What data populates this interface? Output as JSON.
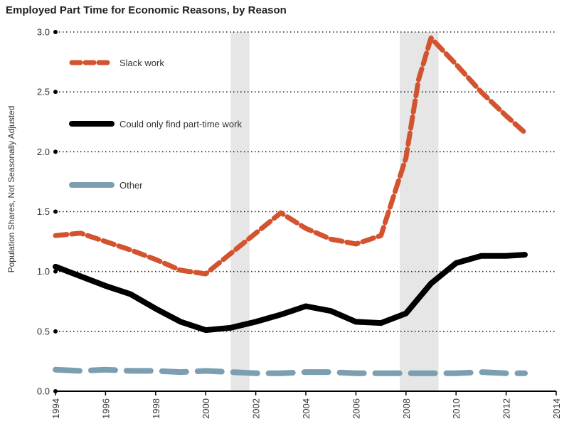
{
  "chart_data": {
    "type": "line",
    "title": "Employed Part Time for Economic Reasons, by Reason",
    "xlabel": "",
    "ylabel": "Population Shares, Not Seasonally Adjusted",
    "xlim": [
      1994,
      2014
    ],
    "ylim": [
      0,
      3.0
    ],
    "x_ticks": [
      "1994",
      "1996",
      "1998",
      "2000",
      "2002",
      "2004",
      "2006",
      "2008",
      "2010",
      "2012",
      "2014"
    ],
    "y_ticks": [
      "0.0",
      "0.5",
      "1.0",
      "1.5",
      "2.0",
      "2.5",
      "3.0"
    ],
    "grid": "horizontal dotted",
    "legend_placement": "top-left",
    "recessions": [
      {
        "start": 2001.0,
        "end": 2001.75
      },
      {
        "start": 2007.75,
        "end": 2009.3
      }
    ],
    "series": [
      {
        "name": "Slack work",
        "color": "#d3532f",
        "style": "dashed",
        "points": [
          [
            1994,
            1.3
          ],
          [
            1995,
            1.32
          ],
          [
            1996,
            1.25
          ],
          [
            1997,
            1.18
          ],
          [
            1998,
            1.1
          ],
          [
            1999,
            1.01
          ],
          [
            2000,
            0.98
          ],
          [
            2001,
            1.15
          ],
          [
            2002,
            1.32
          ],
          [
            2003,
            1.49
          ],
          [
            2004,
            1.36
          ],
          [
            2005,
            1.27
          ],
          [
            2006,
            1.23
          ],
          [
            2007,
            1.3
          ],
          [
            2008,
            1.95
          ],
          [
            2008.5,
            2.6
          ],
          [
            2009,
            2.95
          ],
          [
            2010,
            2.73
          ],
          [
            2011,
            2.5
          ],
          [
            2012,
            2.3
          ],
          [
            2012.75,
            2.16
          ]
        ]
      },
      {
        "name": "Could only find part-time work",
        "color": "#000000",
        "style": "solid",
        "points": [
          [
            1994,
            1.04
          ],
          [
            1995,
            0.96
          ],
          [
            1996,
            0.88
          ],
          [
            1997,
            0.81
          ],
          [
            1998,
            0.69
          ],
          [
            1999,
            0.58
          ],
          [
            2000,
            0.51
          ],
          [
            2001,
            0.53
          ],
          [
            2002,
            0.58
          ],
          [
            2003,
            0.64
          ],
          [
            2004,
            0.71
          ],
          [
            2005,
            0.67
          ],
          [
            2006,
            0.58
          ],
          [
            2007,
            0.57
          ],
          [
            2008,
            0.65
          ],
          [
            2009,
            0.9
          ],
          [
            2010,
            1.07
          ],
          [
            2011,
            1.13
          ],
          [
            2012,
            1.13
          ],
          [
            2012.75,
            1.14
          ]
        ]
      },
      {
        "name": "Other",
        "color": "#7b9fb0",
        "style": "dashed",
        "points": [
          [
            1994,
            0.18
          ],
          [
            1995,
            0.17
          ],
          [
            1996,
            0.18
          ],
          [
            1997,
            0.17
          ],
          [
            1998,
            0.17
          ],
          [
            1999,
            0.16
          ],
          [
            2000,
            0.17
          ],
          [
            2001,
            0.16
          ],
          [
            2002,
            0.15
          ],
          [
            2003,
            0.15
          ],
          [
            2004,
            0.16
          ],
          [
            2005,
            0.16
          ],
          [
            2006,
            0.15
          ],
          [
            2007,
            0.15
          ],
          [
            2008,
            0.15
          ],
          [
            2009,
            0.15
          ],
          [
            2010,
            0.15
          ],
          [
            2011,
            0.16
          ],
          [
            2012,
            0.15
          ],
          [
            2012.75,
            0.15
          ]
        ]
      }
    ]
  }
}
